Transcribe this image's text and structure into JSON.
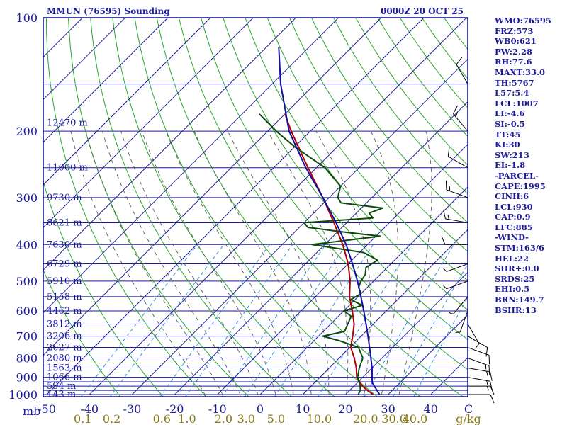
{
  "chart_data": {
    "type": "line",
    "subtype": "skew-T log-p sounding",
    "title_left": "MMUN (76595) Sounding",
    "title_right": "0000Z 20 OCT 25",
    "pressure_axis": {
      "corner_label": "mb",
      "labels": [
        "100",
        "200",
        "300",
        "400",
        "500",
        "600",
        "700",
        "800",
        "900",
        "1000"
      ],
      "range": [
        1000,
        100
      ]
    },
    "temperature_axis": {
      "labels": [
        "-50",
        "-40",
        "-30",
        "-20",
        "-10",
        "0",
        "10",
        "20",
        "30",
        "40",
        "C"
      ],
      "values": [
        -50,
        -40,
        -30,
        -20,
        -10,
        0,
        10,
        20,
        30,
        40
      ],
      "unit": "C"
    },
    "mixing_ratio_axis": {
      "labels": [
        "0.1",
        "0.2",
        "0.6",
        "1.0",
        "2.0",
        "3.0",
        "5.0",
        "10.0",
        "20.0",
        "30.0",
        "40.0"
      ],
      "values": [
        0.1,
        0.2,
        0.6,
        1.0,
        2.0,
        3.0,
        5.0,
        10.0,
        20.0,
        30.0,
        40.0
      ],
      "unit_label": "g/kg"
    },
    "height_labels": [
      {
        "p": 190,
        "text": "12470 m"
      },
      {
        "p": 250,
        "text": "11000 m"
      },
      {
        "p": 300,
        "text": "9730 m"
      },
      {
        "p": 350,
        "text": "8621 m"
      },
      {
        "p": 400,
        "text": "7630 m"
      },
      {
        "p": 450,
        "text": "6729 m"
      },
      {
        "p": 500,
        "text": "5910 m"
      },
      {
        "p": 550,
        "text": "5158 m"
      },
      {
        "p": 600,
        "text": "4462 m"
      },
      {
        "p": 650,
        "text": "3812 m"
      },
      {
        "p": 700,
        "text": "3206 m"
      },
      {
        "p": 750,
        "text": "2627 m"
      },
      {
        "p": 800,
        "text": "2080 m"
      },
      {
        "p": 850,
        "text": "1563 m"
      },
      {
        "p": 900,
        "text": "1066 m"
      },
      {
        "p": 950,
        "text": "594 m"
      },
      {
        "p": 1000,
        "text": "143 m"
      }
    ],
    "series": [
      {
        "name": "Temperature",
        "color": "#b00000",
        "points": [
          {
            "p": 1000,
            "t": 26.5
          },
          {
            "p": 975,
            "t": 24.2
          },
          {
            "p": 950,
            "t": 22.0
          },
          {
            "p": 925,
            "t": 20.4
          },
          {
            "p": 900,
            "t": 18.6
          },
          {
            "p": 850,
            "t": 16.3
          },
          {
            "p": 800,
            "t": 13.5
          },
          {
            "p": 750,
            "t": 10.2
          },
          {
            "p": 700,
            "t": 8.0
          },
          {
            "p": 650,
            "t": 5.5
          },
          {
            "p": 600,
            "t": 2.0
          },
          {
            "p": 550,
            "t": -2.0
          },
          {
            "p": 500,
            "t": -5.5
          },
          {
            "p": 450,
            "t": -10.0
          },
          {
            "p": 400,
            "t": -15.8
          },
          {
            "p": 350,
            "t": -23.0
          },
          {
            "p": 300,
            "t": -31.5
          },
          {
            "p": 250,
            "t": -42.0
          },
          {
            "p": 200,
            "t": -54.5
          },
          {
            "p": 180,
            "t": -60.0
          }
        ]
      },
      {
        "name": "Dewpoint",
        "color": "#0b4a0b",
        "points": [
          {
            "p": 1000,
            "t": 23.0
          },
          {
            "p": 975,
            "t": 22.5
          },
          {
            "p": 950,
            "t": 21.5
          },
          {
            "p": 900,
            "t": 18.8
          },
          {
            "p": 850,
            "t": 17.0
          },
          {
            "p": 800,
            "t": 15.5
          },
          {
            "p": 750,
            "t": 12.0
          },
          {
            "p": 720,
            "t": 6.0
          },
          {
            "p": 700,
            "t": 1.0
          },
          {
            "p": 680,
            "t": 5.0
          },
          {
            "p": 650,
            "t": 4.0
          },
          {
            "p": 620,
            "t": 3.0
          },
          {
            "p": 600,
            "t": 0.0
          },
          {
            "p": 580,
            "t": 3.0
          },
          {
            "p": 560,
            "t": -1.0
          },
          {
            "p": 540,
            "t": 0.0
          },
          {
            "p": 520,
            "t": -2.0
          },
          {
            "p": 500,
            "t": -3.0
          },
          {
            "p": 480,
            "t": -3.5
          },
          {
            "p": 460,
            "t": -5.0
          },
          {
            "p": 440,
            "t": -4.0
          },
          {
            "p": 420,
            "t": -9.0
          },
          {
            "p": 400,
            "t": -23.0
          },
          {
            "p": 390,
            "t": -16.0
          },
          {
            "p": 380,
            "t": -9.0
          },
          {
            "p": 370,
            "t": -19.0
          },
          {
            "p": 360,
            "t": -28.0
          },
          {
            "p": 350,
            "t": -30.0
          },
          {
            "p": 340,
            "t": -15.0
          },
          {
            "p": 330,
            "t": -17.0
          },
          {
            "p": 320,
            "t": -15.0
          },
          {
            "p": 310,
            "t": -26.0
          },
          {
            "p": 300,
            "t": -28.0
          },
          {
            "p": 280,
            "t": -30.0
          },
          {
            "p": 250,
            "t": -38.0
          },
          {
            "p": 220,
            "t": -50.0
          },
          {
            "p": 200,
            "t": -58.0
          },
          {
            "p": 180,
            "t": -66.0
          }
        ]
      },
      {
        "name": "Parcel",
        "color": "#1010a0",
        "points": [
          {
            "p": 1000,
            "t": 28.0
          },
          {
            "p": 950,
            "t": 24.8
          },
          {
            "p": 930,
            "t": 23.5
          },
          {
            "p": 900,
            "t": 22.2
          },
          {
            "p": 850,
            "t": 20.0
          },
          {
            "p": 800,
            "t": 17.4
          },
          {
            "p": 750,
            "t": 14.6
          },
          {
            "p": 700,
            "t": 11.6
          },
          {
            "p": 650,
            "t": 8.3
          },
          {
            "p": 600,
            "t": 4.7
          },
          {
            "p": 550,
            "t": 0.7
          },
          {
            "p": 500,
            "t": -3.8
          },
          {
            "p": 450,
            "t": -9.0
          },
          {
            "p": 400,
            "t": -15.0
          },
          {
            "p": 350,
            "t": -22.5
          },
          {
            "p": 300,
            "t": -31.5
          },
          {
            "p": 250,
            "t": -42.5
          },
          {
            "p": 200,
            "t": -55.0
          },
          {
            "p": 150,
            "t": -68.0
          },
          {
            "p": 120,
            "t": -77.0
          }
        ]
      }
    ],
    "winds": [
      {
        "p": 1000,
        "dir": 90,
        "spd": 10
      },
      {
        "p": 950,
        "dir": 90,
        "spd": 15
      },
      {
        "p": 900,
        "dir": 100,
        "spd": 15
      },
      {
        "p": 850,
        "dir": 100,
        "spd": 15
      },
      {
        "p": 800,
        "dir": 110,
        "spd": 15
      },
      {
        "p": 750,
        "dir": 110,
        "spd": 10
      },
      {
        "p": 700,
        "dir": 120,
        "spd": 10
      },
      {
        "p": 650,
        "dir": 150,
        "spd": 5
      },
      {
        "p": 600,
        "dir": 200,
        "spd": 5
      },
      {
        "p": 550,
        "dir": 220,
        "spd": 5
      },
      {
        "p": 500,
        "dir": 250,
        "spd": 5
      },
      {
        "p": 450,
        "dir": 250,
        "spd": 5
      },
      {
        "p": 400,
        "dir": 270,
        "spd": 10
      },
      {
        "p": 350,
        "dir": 280,
        "spd": 15
      },
      {
        "p": 300,
        "dir": 290,
        "spd": 15
      },
      {
        "p": 250,
        "dir": 300,
        "spd": 10
      },
      {
        "p": 200,
        "dir": 320,
        "spd": 15
      },
      {
        "p": 150,
        "dir": 330,
        "spd": 10
      }
    ]
  },
  "indices": [
    "WMO:76595",
    "FRZ:573",
    "WB0:621",
    "PW:2.28",
    "RH:77.6",
    "MAXT:33.0",
    "TH:5767",
    "L57:5.4",
    "LCL:1007",
    "LI:-4.6",
    "SI:-0.5",
    "TT:45",
    "KI:30",
    "SW:213",
    "EI:-1.8",
    "-PARCEL-",
    "CAPE:1995",
    "CINH:6",
    "LCL:930",
    "CAP:0.9",
    "LFC:885",
    "-WIND-",
    "STM:163/6",
    "HEL:22",
    "SHR+:0.0",
    "SRDS:25",
    "EHI:0.5",
    "BRN:149.7",
    "BSHR:13"
  ],
  "colors": {
    "frame": "#0a0a8c",
    "isobar": "#1a1aa0",
    "isotherm": "#1e1e96",
    "dry_adiabat": "#2aa52a",
    "moist_adiabat": "#5a5a5a",
    "mixing_ratio": "#3a8fd0",
    "temperature": "#b00000",
    "dewpoint": "#0b4a0b",
    "parcel": "#1010a0",
    "labels": "#1c1c9a",
    "mixing_labels": "#8a7a10",
    "wind": "#000000"
  }
}
